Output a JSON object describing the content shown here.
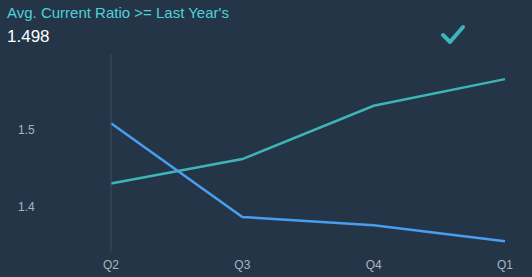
{
  "chart_data": {
    "type": "line",
    "title": "Avg. Current Ratio >= Last Year's",
    "subtitle": "1.498",
    "categories": [
      "Q2",
      "Q3",
      "Q4",
      "Q1"
    ],
    "series": [
      {
        "color": "#3db5b8",
        "values": [
          1.43,
          1.462,
          1.532,
          1.567
        ]
      },
      {
        "color": "#4a9ef0",
        "values": [
          1.509,
          1.386,
          1.375,
          1.354
        ]
      }
    ],
    "ylim": [
      1.34,
      1.6
    ],
    "yticks": [
      1.4,
      1.5
    ],
    "grid": false
  }
}
